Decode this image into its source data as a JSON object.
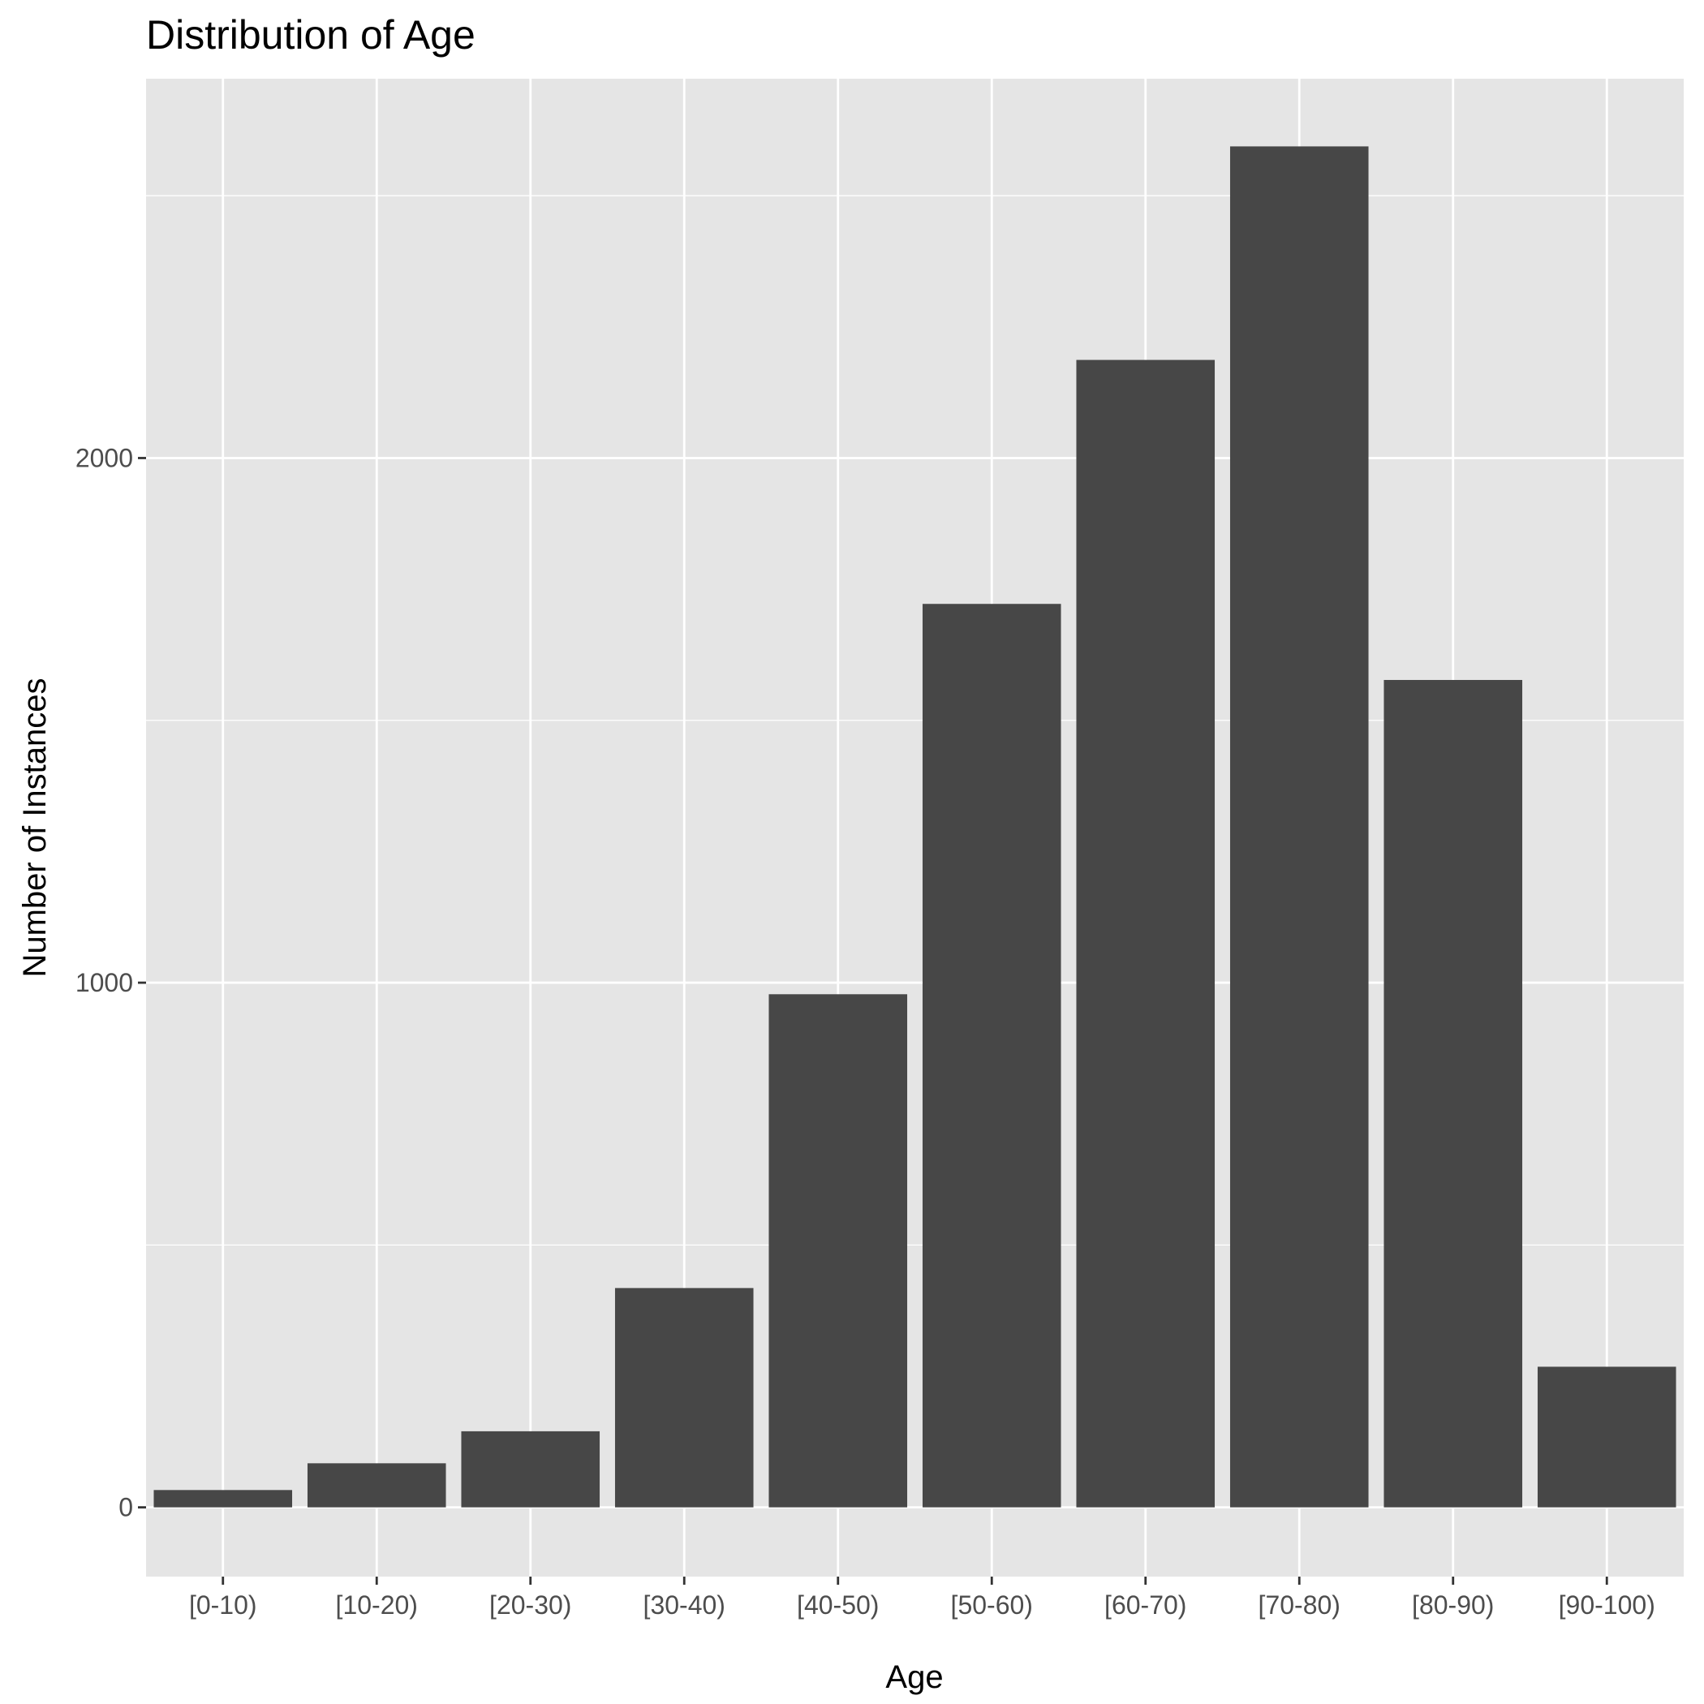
{
  "chart_data": {
    "type": "bar",
    "title": "Distribution of Age",
    "xlabel": "Age",
    "ylabel": "Number of Instances",
    "categories": [
      "[0-10)",
      "[10-20)",
      "[20-30)",
      "[30-40)",
      "[40-50)",
      "[50-60)",
      "[60-70)",
      "[70-80)",
      "[80-90)",
      "[90-100)"
    ],
    "values": [
      33,
      84,
      145,
      418,
      978,
      1722,
      2187,
      2594,
      1577,
      268
    ],
    "y_ticks": [
      0,
      1000,
      2000
    ],
    "ylim": [
      -132,
      2723
    ],
    "grid": true,
    "legend": "none",
    "colors": {
      "bar": "#474747",
      "panel_background": "#e5e5e5",
      "grid": "#ffffff",
      "tick_mark": "#333333"
    }
  }
}
